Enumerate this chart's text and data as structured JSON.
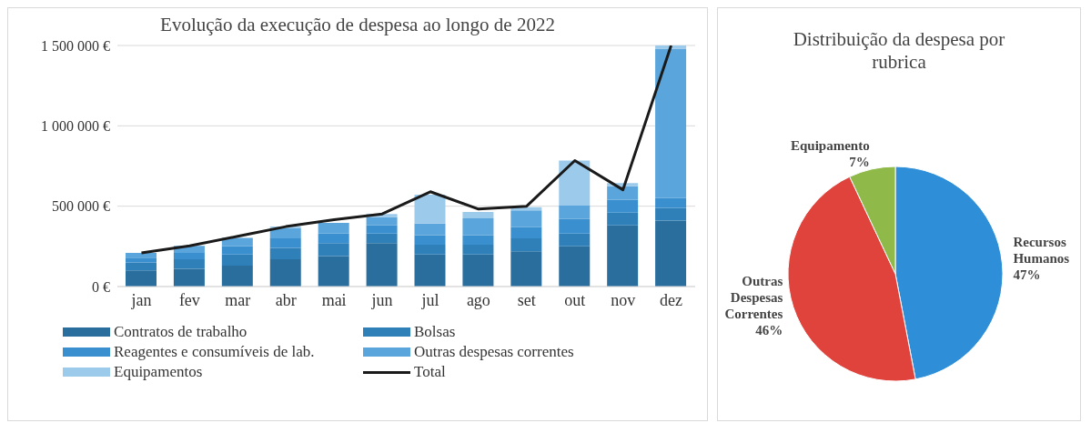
{
  "chart_data": [
    {
      "type": "bar",
      "stacked": true,
      "title": "Evolução da execução de despesa ao longo de 2022",
      "categories": [
        "jan",
        "fev",
        "mar",
        "abr",
        "mai",
        "jun",
        "jul",
        "ago",
        "set",
        "out",
        "nov",
        "dez"
      ],
      "series": [
        {
          "name": "Contratos de trabalho",
          "color": "#2a6e9e",
          "values": [
            100000,
            110000,
            130000,
            170000,
            190000,
            270000,
            200000,
            200000,
            220000,
            250000,
            380000,
            410000
          ]
        },
        {
          "name": "Bolsas",
          "color": "#2f7fb8",
          "values": [
            50000,
            60000,
            70000,
            70000,
            80000,
            60000,
            60000,
            60000,
            80000,
            80000,
            80000,
            80000
          ]
        },
        {
          "name": "Reagentes e consumíveis de lab.",
          "color": "#3a8fcf",
          "values": [
            30000,
            40000,
            50000,
            60000,
            60000,
            50000,
            60000,
            60000,
            70000,
            90000,
            80000,
            60000
          ]
        },
        {
          "name": "Outras despesas correntes",
          "color": "#5aa5dc",
          "values": [
            30000,
            43000,
            53000,
            63000,
            66000,
            52000,
            72000,
            104000,
            104000,
            84000,
            84000,
            930000
          ]
        },
        {
          "name": "Equipamentos",
          "color": "#9ccaeb",
          "values": [
            0,
            0,
            null,
            10000,
            null,
            20000,
            180000,
            40000,
            20000,
            280000,
            20000,
            20000
          ]
        },
        {
          "name": "Total",
          "type": "line",
          "color": "#1a1a1a",
          "values": [
            210000,
            253000,
            313000,
            373000,
            416000,
            452000,
            590000,
            482000,
            500000,
            784000,
            602000,
            1500000
          ]
        }
      ],
      "ylim": [
        0,
        1500000
      ],
      "yticks": [
        {
          "value": 0,
          "label": "0 €"
        },
        {
          "value": 500000,
          "label": "500 000 €"
        },
        {
          "value": 1000000,
          "label": "1 000 000 €"
        },
        {
          "value": 1500000,
          "label": "1 500 000 €"
        }
      ],
      "grid": "y",
      "legend": "bottom",
      "marker": "none",
      "line_style": "solid"
    },
    {
      "type": "pie",
      "title": "Distribuição da despesa por rubrica",
      "categories": [
        "Recursos Humanos",
        "Outras Despesas Correntes",
        "Equipamento"
      ],
      "values": [
        47,
        46,
        7
      ],
      "colors": [
        "#2e8fd8",
        "#e0423c",
        "#8fba4a"
      ],
      "value_labels": [
        "47%",
        "46%",
        "7%"
      ]
    }
  ]
}
